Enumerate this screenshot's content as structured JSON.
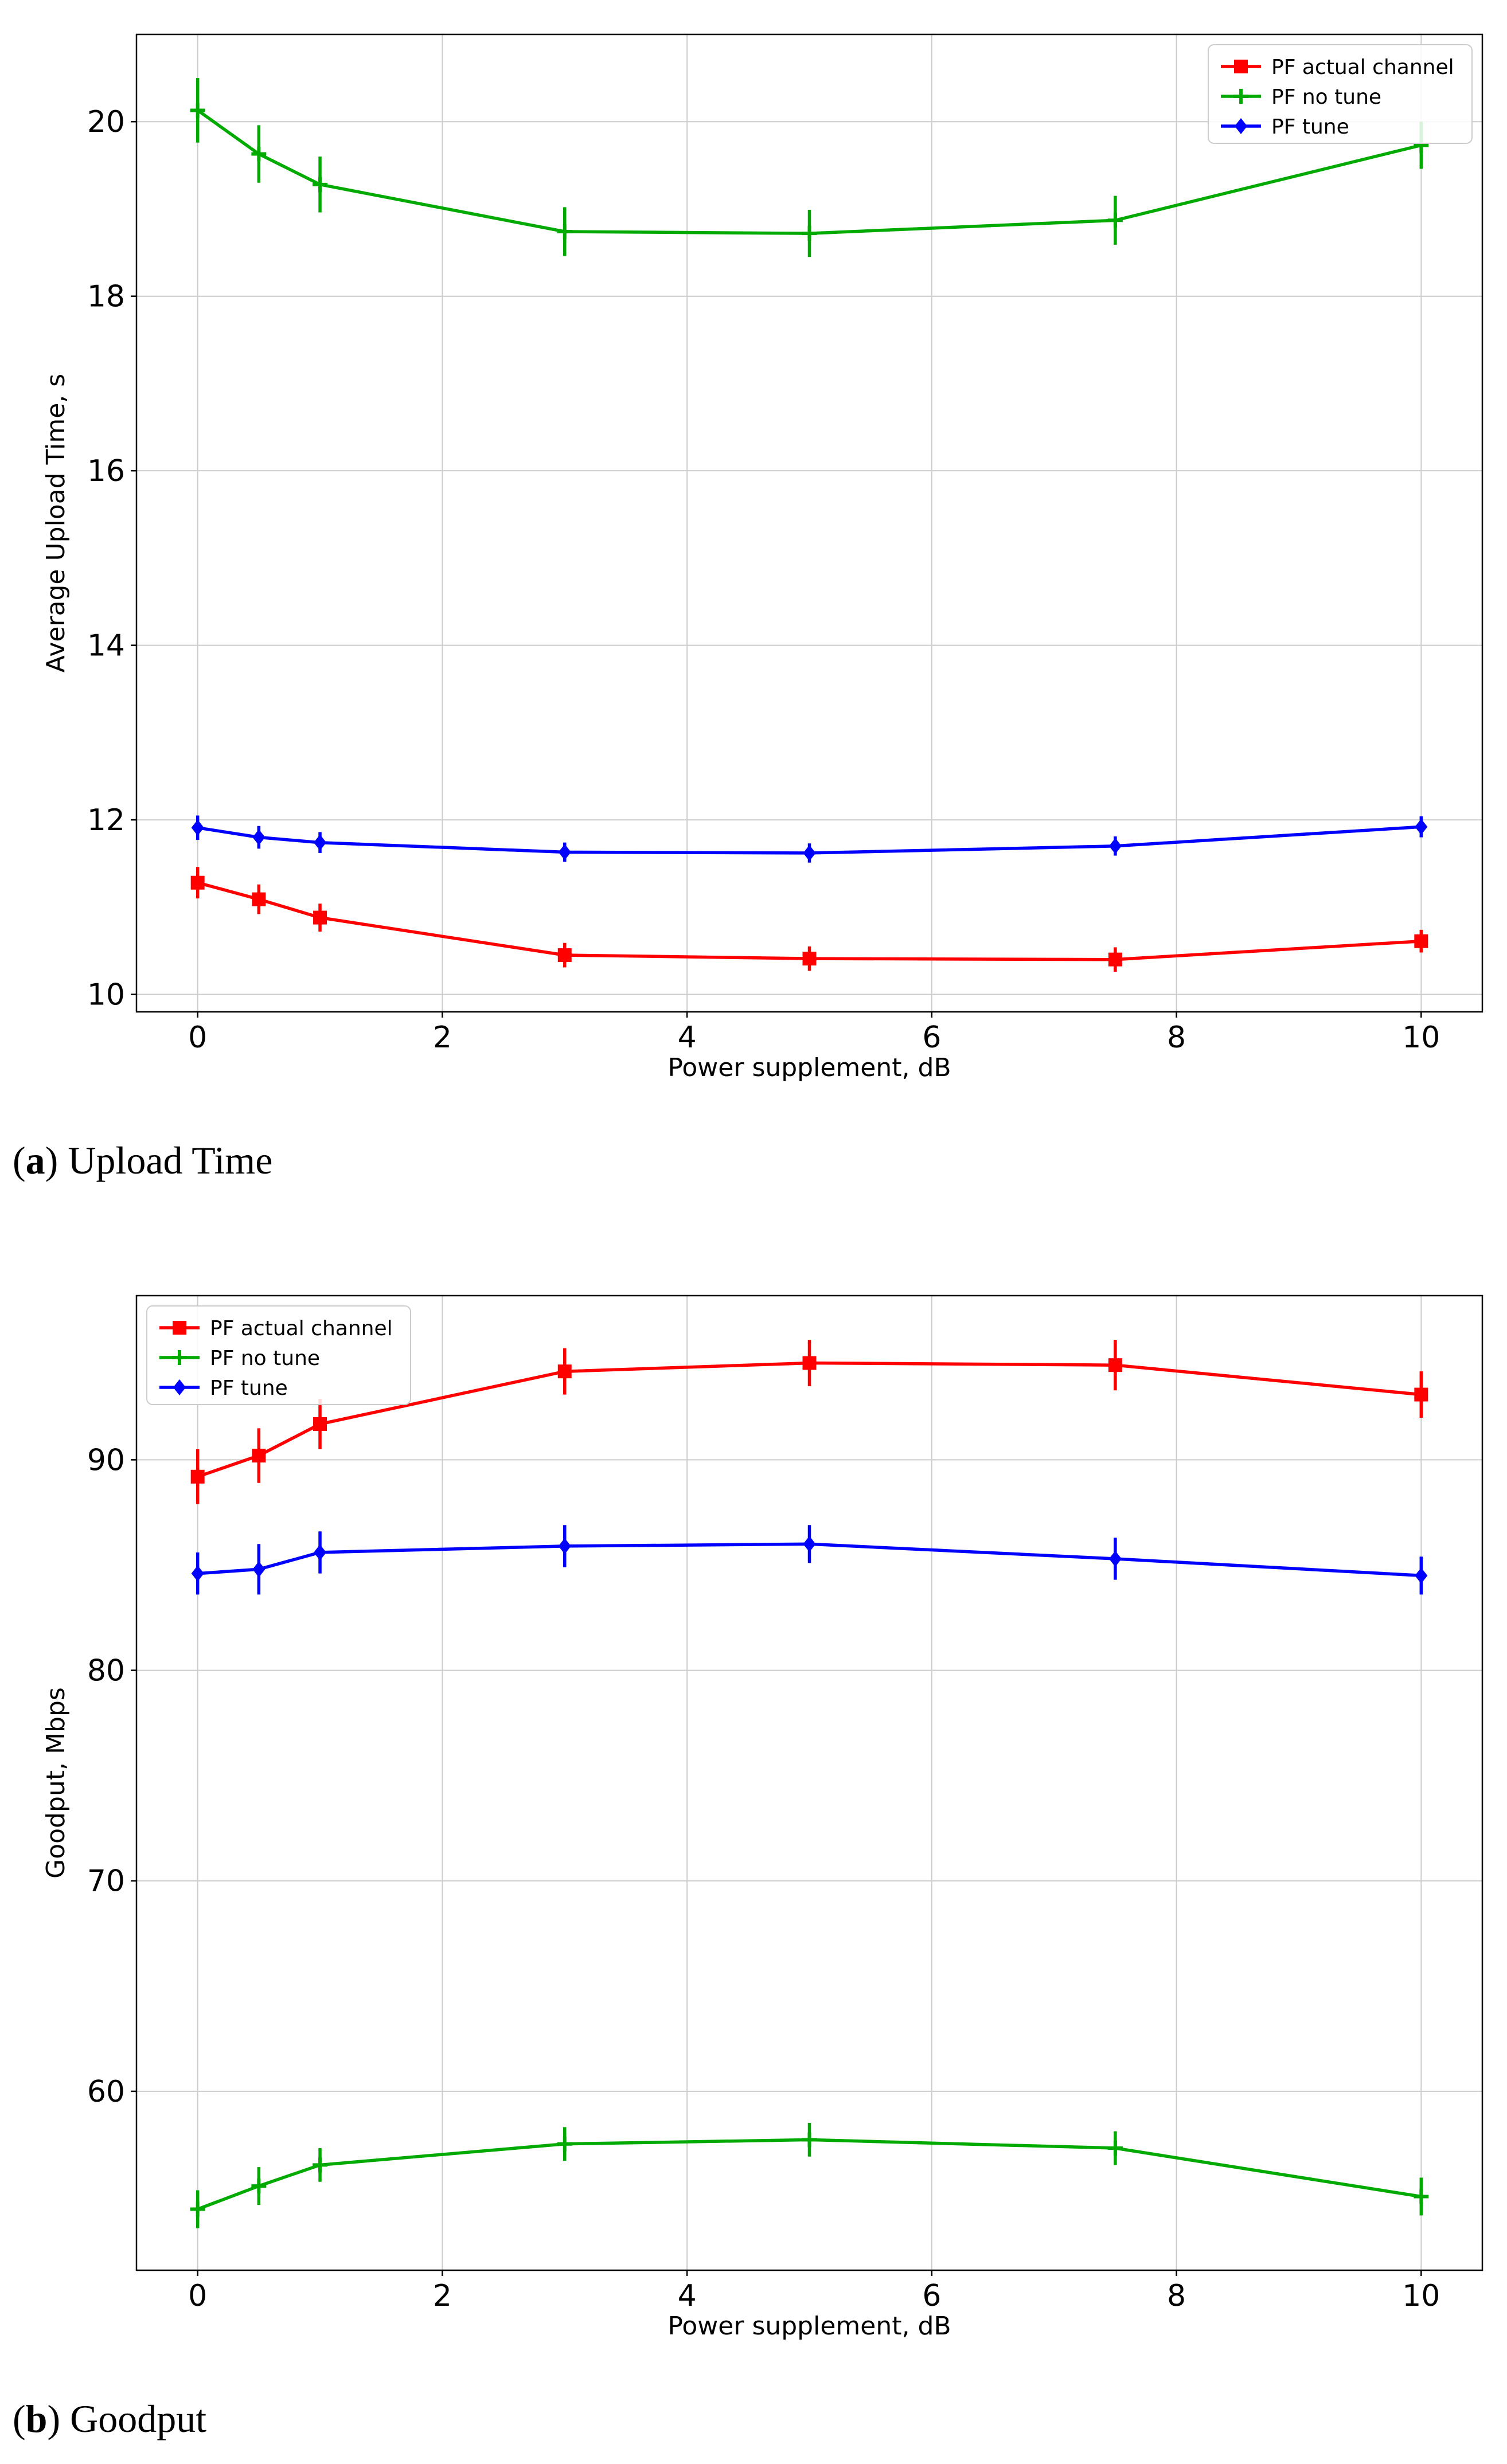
{
  "colors": {
    "red": "#ff0000",
    "green": "#00aa00",
    "blue": "#0000ff",
    "grid": "#cccccc"
  },
  "chart_data": [
    {
      "type": "line",
      "caption_letter": "a",
      "caption_text": "Upload Time",
      "xlabel": "Power supplement, dB",
      "ylabel": "Average Upload Time, s",
      "x": [
        0,
        0.5,
        1,
        3,
        5,
        7.5,
        10
      ],
      "xlim": [
        -0.5,
        10.5
      ],
      "ylim": [
        9.8,
        21.0
      ],
      "xticks": [
        0,
        2,
        4,
        6,
        8,
        10
      ],
      "yticks": [
        10,
        12,
        14,
        16,
        18,
        20
      ],
      "grid": true,
      "legend_position": "top-right",
      "series": [
        {
          "name": "PF actual channel",
          "color": "#ff0000",
          "marker": "square",
          "values": [
            11.28,
            11.09,
            10.88,
            10.45,
            10.41,
            10.4,
            10.61
          ],
          "errors": [
            0.18,
            0.17,
            0.16,
            0.14,
            0.14,
            0.14,
            0.13
          ]
        },
        {
          "name": "PF no tune",
          "color": "#00aa00",
          "marker": "plus",
          "values": [
            20.13,
            19.63,
            19.28,
            18.74,
            18.72,
            18.87,
            19.73
          ],
          "errors": [
            0.37,
            0.33,
            0.32,
            0.28,
            0.27,
            0.28,
            0.27
          ]
        },
        {
          "name": "PF tune",
          "color": "#0000ff",
          "marker": "diamond",
          "values": [
            11.91,
            11.8,
            11.74,
            11.63,
            11.62,
            11.7,
            11.92
          ],
          "errors": [
            0.14,
            0.13,
            0.12,
            0.11,
            0.11,
            0.11,
            0.12
          ]
        }
      ]
    },
    {
      "type": "line",
      "caption_letter": "b",
      "caption_text": "Goodput",
      "xlabel": "Power supplement, dB",
      "ylabel": "Goodput, Mbps",
      "x": [
        0,
        0.5,
        1,
        3,
        5,
        7.5,
        10
      ],
      "xlim": [
        -0.5,
        10.5
      ],
      "ylim": [
        51.5,
        97.8
      ],
      "xticks": [
        0,
        2,
        4,
        6,
        8,
        10
      ],
      "yticks": [
        60,
        70,
        80,
        90
      ],
      "grid": true,
      "legend_position": "top-left",
      "series": [
        {
          "name": "PF actual channel",
          "color": "#ff0000",
          "marker": "square",
          "values": [
            89.2,
            90.2,
            91.7,
            94.2,
            94.6,
            94.5,
            93.1
          ],
          "errors": [
            1.3,
            1.3,
            1.2,
            1.1,
            1.1,
            1.2,
            1.1
          ]
        },
        {
          "name": "PF no tune",
          "color": "#00aa00",
          "marker": "plus",
          "values": [
            54.4,
            55.5,
            56.5,
            57.5,
            57.7,
            57.3,
            55.0
          ],
          "errors": [
            0.9,
            0.9,
            0.8,
            0.8,
            0.8,
            0.8,
            0.9
          ]
        },
        {
          "name": "PF tune",
          "color": "#0000ff",
          "marker": "diamond",
          "values": [
            84.6,
            84.8,
            85.6,
            85.9,
            86.0,
            85.3,
            84.5
          ],
          "errors": [
            1.0,
            1.2,
            1.0,
            1.0,
            0.9,
            1.0,
            0.9
          ]
        }
      ]
    }
  ]
}
